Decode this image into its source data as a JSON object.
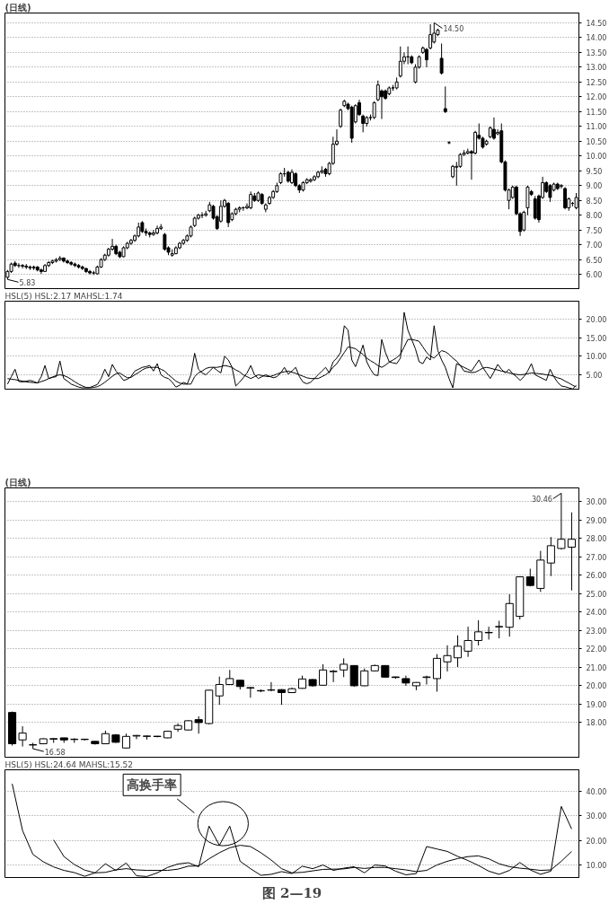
{
  "chart_data": [
    {
      "type": "candlestick",
      "title": "(日线)",
      "tick_labels": "y",
      "grid": "y",
      "categories": [
        null,
        null,
        null,
        null,
        null,
        null,
        null,
        null,
        null,
        null,
        null,
        null,
        null,
        null,
        null,
        null,
        null,
        null,
        null,
        null,
        null,
        null,
        null,
        null,
        null,
        null,
        null,
        null,
        null,
        null,
        null,
        null,
        null,
        null,
        null,
        null,
        null,
        null,
        null,
        null,
        null,
        null,
        null,
        null,
        null,
        null,
        null,
        null,
        null,
        null,
        null,
        null,
        null,
        null,
        null,
        null,
        null,
        null,
        null,
        null,
        null,
        null,
        null,
        null,
        null,
        null,
        null,
        null,
        null,
        null,
        null,
        null,
        null,
        null,
        null,
        null,
        null,
        null,
        null,
        null,
        null,
        null,
        null,
        null,
        null,
        null,
        null,
        null,
        null,
        null,
        null,
        null,
        null,
        null,
        null,
        null,
        null,
        null,
        null,
        null,
        null,
        null,
        null,
        null,
        null,
        null,
        null,
        null,
        null,
        null,
        null,
        null,
        null,
        null,
        null,
        null,
        null,
        null,
        null,
        null,
        null,
        null,
        null,
        null,
        null,
        null,
        null,
        null,
        null,
        null,
        null,
        null,
        null,
        null,
        null,
        null,
        null,
        null,
        null,
        null,
        null,
        null,
        null,
        null,
        null,
        null,
        null,
        null,
        null,
        null,
        null,
        null,
        null
      ],
      "ohlc": [
        [
          5.9,
          6.15,
          5.83,
          6.1
        ],
        [
          6.1,
          6.4,
          6.05,
          6.35
        ],
        [
          6.38,
          6.45,
          6.25,
          6.3
        ],
        [
          6.3,
          6.38,
          6.22,
          6.3
        ],
        [
          6.3,
          6.35,
          6.2,
          6.28
        ],
        [
          6.28,
          6.35,
          6.18,
          6.25
        ],
        [
          6.25,
          6.3,
          6.15,
          6.22
        ],
        [
          6.22,
          6.3,
          6.15,
          6.25
        ],
        [
          6.25,
          6.28,
          6.1,
          6.15
        ],
        [
          6.15,
          6.2,
          6.02,
          6.1
        ],
        [
          6.1,
          6.35,
          6.08,
          6.3
        ],
        [
          6.3,
          6.45,
          6.25,
          6.4
        ],
        [
          6.4,
          6.5,
          6.35,
          6.45
        ],
        [
          6.45,
          6.55,
          6.4,
          6.5
        ],
        [
          6.5,
          6.62,
          6.45,
          6.55
        ],
        [
          6.55,
          6.58,
          6.4,
          6.45
        ],
        [
          6.45,
          6.5,
          6.35,
          6.4
        ],
        [
          6.4,
          6.45,
          6.3,
          6.35
        ],
        [
          6.35,
          6.4,
          6.25,
          6.3
        ],
        [
          6.3,
          6.35,
          6.2,
          6.25
        ],
        [
          6.25,
          6.3,
          6.15,
          6.2
        ],
        [
          6.2,
          6.22,
          6.05,
          6.1
        ],
        [
          6.1,
          6.15,
          6.0,
          6.05
        ],
        [
          6.05,
          6.12,
          5.98,
          6.05
        ],
        [
          6.02,
          6.3,
          6.0,
          6.25
        ],
        [
          6.25,
          6.55,
          6.22,
          6.5
        ],
        [
          6.5,
          6.7,
          6.45,
          6.65
        ],
        [
          6.65,
          6.9,
          6.6,
          6.85
        ],
        [
          6.85,
          7.2,
          6.8,
          6.95
        ],
        [
          6.95,
          7.0,
          6.65,
          6.7
        ],
        [
          6.75,
          6.8,
          6.55,
          6.6
        ],
        [
          6.6,
          6.95,
          6.58,
          6.9
        ],
        [
          6.9,
          7.1,
          6.85,
          7.05
        ],
        [
          7.05,
          7.2,
          7.0,
          7.15
        ],
        [
          7.15,
          7.35,
          7.1,
          7.3
        ],
        [
          7.3,
          7.75,
          7.25,
          7.6
        ],
        [
          7.75,
          7.8,
          7.4,
          7.45
        ],
        [
          7.45,
          7.55,
          7.3,
          7.4
        ],
        [
          7.4,
          7.45,
          7.25,
          7.35
        ],
        [
          7.35,
          7.5,
          7.3,
          7.4
        ],
        [
          7.4,
          7.65,
          7.35,
          7.55
        ],
        [
          7.55,
          7.7,
          7.5,
          7.6
        ],
        [
          7.35,
          7.4,
          6.8,
          6.85
        ],
        [
          6.9,
          6.95,
          6.65,
          6.75
        ],
        [
          6.65,
          6.85,
          6.6,
          6.7
        ],
        [
          6.7,
          6.95,
          6.68,
          6.9
        ],
        [
          6.9,
          7.1,
          6.85,
          7.05
        ],
        [
          7.05,
          7.2,
          7.0,
          7.15
        ],
        [
          7.15,
          7.35,
          7.1,
          7.3
        ],
        [
          7.3,
          7.65,
          7.25,
          7.6
        ],
        [
          7.65,
          7.95,
          7.6,
          7.9
        ],
        [
          7.9,
          8.05,
          7.85,
          8.0
        ],
        [
          8.0,
          8.1,
          7.9,
          8.0
        ],
        [
          8.0,
          8.15,
          7.95,
          8.05
        ],
        [
          8.15,
          8.45,
          8.1,
          8.35
        ],
        [
          8.3,
          8.35,
          7.85,
          7.9
        ],
        [
          7.95,
          8.0,
          7.5,
          7.55
        ],
        [
          7.8,
          8.5,
          7.75,
          8.3
        ],
        [
          8.3,
          8.55,
          8.25,
          8.5
        ],
        [
          8.4,
          8.45,
          7.6,
          7.75
        ],
        [
          7.85,
          8.1,
          7.8,
          8.05
        ],
        [
          8.05,
          8.25,
          8.0,
          8.2
        ],
        [
          8.2,
          8.3,
          8.1,
          8.25
        ],
        [
          8.25,
          8.3,
          8.15,
          8.25
        ],
        [
          8.25,
          8.4,
          8.2,
          8.3
        ],
        [
          8.25,
          8.8,
          8.2,
          8.7
        ],
        [
          8.65,
          8.75,
          8.45,
          8.5
        ],
        [
          8.5,
          8.8,
          8.45,
          8.75
        ],
        [
          8.7,
          8.75,
          8.35,
          8.4
        ],
        [
          8.2,
          8.4,
          8.1,
          8.35
        ],
        [
          8.4,
          8.65,
          8.35,
          8.6
        ],
        [
          8.6,
          8.85,
          8.55,
          8.8
        ],
        [
          8.8,
          9.1,
          8.75,
          9.0
        ],
        [
          9.1,
          9.45,
          9.05,
          9.4
        ],
        [
          9.4,
          9.6,
          9.3,
          9.4
        ],
        [
          9.45,
          9.5,
          9.1,
          9.15
        ],
        [
          9.1,
          9.55,
          9.05,
          9.45
        ],
        [
          9.4,
          9.45,
          8.95,
          9.0
        ],
        [
          9.0,
          9.05,
          8.75,
          8.85
        ],
        [
          8.85,
          9.15,
          8.8,
          9.1
        ],
        [
          9.1,
          9.25,
          9.05,
          9.2
        ],
        [
          9.15,
          9.25,
          9.1,
          9.2
        ],
        [
          9.2,
          9.35,
          9.15,
          9.3
        ],
        [
          9.3,
          9.5,
          9.25,
          9.45
        ],
        [
          9.45,
          9.65,
          9.4,
          9.5
        ],
        [
          9.55,
          9.6,
          9.3,
          9.4
        ],
        [
          9.4,
          9.8,
          9.35,
          9.75
        ],
        [
          9.75,
          10.65,
          9.7,
          10.4
        ],
        [
          10.4,
          10.9,
          10.35,
          10.5
        ],
        [
          11.0,
          11.6,
          10.95,
          11.55
        ],
        [
          11.7,
          11.9,
          11.65,
          11.85
        ],
        [
          11.75,
          11.8,
          11.55,
          11.6
        ],
        [
          11.65,
          11.7,
          10.45,
          10.6
        ],
        [
          11.15,
          11.75,
          11.1,
          11.7
        ],
        [
          11.8,
          11.9,
          11.35,
          11.4
        ],
        [
          11.35,
          11.4,
          10.8,
          11.1
        ],
        [
          11.1,
          11.35,
          11.0,
          11.3
        ],
        [
          11.3,
          11.4,
          11.2,
          11.3
        ],
        [
          11.3,
          11.85,
          11.25,
          11.8
        ],
        [
          11.9,
          12.55,
          11.85,
          12.4
        ],
        [
          12.2,
          12.25,
          11.25,
          12.0
        ],
        [
          12.2,
          12.25,
          11.9,
          11.95
        ],
        [
          12.1,
          12.35,
          12.05,
          12.3
        ],
        [
          12.3,
          12.4,
          12.2,
          12.3
        ],
        [
          12.3,
          12.65,
          12.25,
          12.5
        ],
        [
          12.7,
          13.7,
          12.65,
          13.2
        ],
        [
          13.2,
          13.5,
          13.1,
          13.35
        ],
        [
          13.35,
          13.7,
          13.1,
          13.35
        ],
        [
          13.35,
          13.4,
          13.1,
          13.15
        ],
        [
          12.5,
          13.1,
          12.45,
          13.0
        ],
        [
          13.0,
          13.4,
          12.95,
          13.35
        ],
        [
          13.5,
          13.7,
          13.45,
          13.65
        ],
        [
          13.6,
          13.65,
          13.0,
          13.25
        ],
        [
          13.65,
          14.45,
          13.6,
          14.1
        ],
        [
          13.85,
          14.5,
          13.8,
          14.15
        ],
        [
          14.1,
          14.3,
          14.05,
          14.25
        ],
        [
          13.3,
          13.8,
          12.75,
          12.8
        ],
        [
          11.6,
          12.35,
          11.45,
          11.5
        ],
        [
          10.45,
          10.5,
          10.4,
          10.45
        ],
        [
          9.3,
          9.7,
          9.25,
          9.65
        ],
        [
          9.62,
          9.8,
          9.0,
          9.65
        ],
        [
          9.65,
          10.1,
          9.6,
          10.05
        ],
        [
          10.05,
          10.2,
          10.0,
          10.1
        ],
        [
          10.1,
          10.25,
          10.05,
          10.15
        ],
        [
          10.15,
          10.2,
          9.2,
          10.1
        ],
        [
          10.1,
          10.85,
          10.05,
          10.8
        ],
        [
          10.7,
          11.1,
          10.55,
          10.6
        ],
        [
          10.6,
          10.65,
          10.25,
          10.3
        ],
        [
          10.4,
          10.55,
          10.35,
          10.5
        ],
        [
          10.65,
          11.0,
          10.6,
          10.95
        ],
        [
          10.9,
          11.3,
          10.55,
          10.6
        ],
        [
          10.75,
          10.9,
          10.7,
          10.8
        ],
        [
          10.85,
          11.1,
          9.75,
          9.8
        ],
        [
          9.8,
          9.85,
          8.8,
          8.85
        ],
        [
          8.5,
          8.9,
          8.2,
          8.85
        ],
        [
          8.6,
          9.0,
          8.55,
          8.95
        ],
        [
          8.95,
          9.0,
          8.0,
          8.05
        ],
        [
          8.05,
          8.1,
          7.3,
          7.45
        ],
        [
          7.5,
          8.15,
          7.45,
          8.1
        ],
        [
          8.25,
          9.0,
          8.0,
          8.95
        ],
        [
          8.8,
          8.85,
          8.65,
          8.7
        ],
        [
          8.55,
          8.65,
          7.85,
          7.9
        ],
        [
          8.65,
          8.7,
          7.75,
          7.85
        ],
        [
          8.6,
          9.3,
          8.55,
          9.1
        ],
        [
          9.1,
          9.15,
          8.75,
          8.8
        ],
        [
          9.0,
          9.05,
          8.45,
          8.6
        ],
        [
          8.85,
          9.1,
          8.8,
          9.05
        ],
        [
          9.05,
          9.1,
          8.85,
          8.9
        ],
        [
          8.98,
          9.05,
          8.9,
          9.0
        ],
        [
          8.9,
          8.95,
          8.2,
          8.25
        ],
        [
          8.25,
          8.6,
          8.15,
          8.55
        ],
        [
          8.4,
          8.45,
          8.3,
          8.4
        ],
        [
          8.25,
          8.75,
          8.2,
          8.6
        ]
      ],
      "ylim": [
        5.49,
        14.83
      ],
      "yticks": [
        {
          "value": 6,
          "label": "6.00"
        },
        {
          "value": 6.5,
          "label": "6.50"
        },
        {
          "value": 7,
          "label": "7.00"
        },
        {
          "value": 7.5,
          "label": "7.50"
        },
        {
          "value": 8,
          "label": "8.00"
        },
        {
          "value": 8.5,
          "label": "8.50"
        },
        {
          "value": 9,
          "label": "9.00"
        },
        {
          "value": 9.5,
          "label": "9.50"
        },
        {
          "value": 10,
          "label": "10.00"
        },
        {
          "value": 10.5,
          "label": "10.50"
        },
        {
          "value": 11,
          "label": "11.00"
        },
        {
          "value": 11.5,
          "label": "11.50"
        },
        {
          "value": 12,
          "label": "12.00"
        },
        {
          "value": 12.5,
          "label": "12.50"
        },
        {
          "value": 13,
          "label": "13.00"
        },
        {
          "value": 13.5,
          "label": "13.50"
        },
        {
          "value": 14,
          "label": "14.00"
        },
        {
          "value": 14.5,
          "label": "14.50"
        }
      ],
      "annotations": [
        "14.50",
        "5.83"
      ]
    },
    {
      "type": "line",
      "title": "HSL(5) HSL:2.17 MAHSL:1.74",
      "tick_labels": "y",
      "grid": "y",
      "categories": [
        null,
        null,
        null,
        null,
        null,
        null,
        null,
        null,
        null,
        null,
        null,
        null,
        null,
        null,
        null,
        null,
        null,
        null,
        null,
        null,
        null,
        null,
        null,
        null,
        null,
        null,
        null,
        null,
        null,
        null,
        null,
        null,
        null,
        null,
        null,
        null,
        null,
        null,
        null,
        null,
        null,
        null,
        null,
        null,
        null,
        null,
        null,
        null,
        null,
        null,
        null,
        null,
        null,
        null,
        null,
        null,
        null,
        null,
        null,
        null,
        null,
        null,
        null,
        null,
        null,
        null,
        null,
        null,
        null,
        null,
        null,
        null,
        null,
        null,
        null,
        null,
        null,
        null,
        null,
        null,
        null,
        null,
        null,
        null,
        null,
        null,
        null,
        null,
        null,
        null,
        null,
        null,
        null,
        null,
        null,
        null,
        null,
        null,
        null,
        null,
        null,
        null,
        null,
        null,
        null,
        null,
        null,
        null,
        null,
        null,
        null,
        null,
        null,
        null,
        null,
        null,
        null,
        null,
        null,
        null,
        null,
        null,
        null,
        null,
        null,
        null,
        null,
        null,
        null,
        null,
        null,
        null,
        null,
        null,
        null,
        null,
        null,
        null,
        null,
        null,
        null,
        null,
        null,
        null,
        null,
        null,
        null,
        null,
        null,
        null,
        null,
        null,
        null
      ],
      "series": [
        {
          "color": "#000000",
          "values": [
            2.5,
            4.5,
            6.5,
            3.2,
            3.1,
            3.3,
            3.5,
            3.2,
            2.8,
            4.5,
            7.5,
            4.0,
            4.3,
            4.5,
            8.7,
            4.0,
            3.3,
            2.5,
            2.1,
            1.7,
            1.5,
            1.5,
            1.6,
            2.0,
            2.4,
            4.0,
            6.5,
            4.5,
            7.8,
            6.0,
            4.8,
            3.5,
            3.8,
            4.5,
            6.0,
            6.5,
            7.0,
            7.2,
            7.5,
            6.0,
            8.0,
            5.0,
            4.3,
            4.0,
            3.0,
            1.7,
            2.2,
            3.0,
            2.5,
            5.0,
            10.8,
            6.5,
            5.5,
            5.0,
            6.0,
            7.0,
            6.2,
            5.5,
            10.0,
            9.0,
            7.0,
            2.0,
            3.0,
            4.2,
            5.5,
            7.5,
            5.0,
            4.0,
            4.5,
            5.0,
            4.6,
            4.2,
            4.5,
            5.5,
            7.0,
            5.2,
            6.0,
            7.0,
            4.5,
            3.0,
            2.6,
            3.0,
            4.0,
            5.0,
            6.0,
            7.0,
            5.5,
            8.5,
            9.5,
            11.0,
            18.2,
            17.0,
            9.0,
            7.2,
            10.0,
            13.0,
            8.5,
            6.5,
            5.0,
            4.8,
            14.5,
            11.0,
            8.5,
            8.2,
            8.0,
            9.5,
            21.8,
            17.0,
            14.5,
            12.0,
            8.5,
            8.0,
            9.8,
            9.0,
            18.2,
            11.5,
            9.0,
            7.0,
            4.0,
            1.5,
            8.0,
            7.5,
            7.0,
            6.5,
            6.0,
            7.5,
            9.0,
            7.0,
            5.5,
            4.0,
            5.8,
            7.8,
            6.5,
            5.5,
            6.5,
            5.3,
            4.5,
            3.5,
            4.5,
            6.0,
            8.0,
            5.0,
            4.5,
            4.0,
            3.5,
            6.5,
            4.5,
            3.0,
            2.0,
            1.8,
            1.5,
            1.2,
            2.17
          ]
        },
        {
          "color": "#000000",
          "values": [
            4.0,
            3.8,
            3.7,
            3.5,
            3.3,
            3.1,
            3.0,
            2.9,
            2.8,
            3.2,
            3.5,
            4.0,
            4.4,
            4.8,
            5.0,
            4.8,
            4.4,
            3.8,
            3.1,
            2.5,
            2.0,
            1.6,
            1.5,
            1.6,
            1.8,
            2.3,
            3.0,
            3.8,
            4.6,
            5.3,
            5.5,
            4.8,
            4.2,
            4.3,
            5.0,
            5.6,
            6.3,
            6.8,
            7.0,
            7.0,
            7.0,
            6.5,
            6.0,
            5.0,
            4.2,
            3.3,
            2.8,
            2.5,
            2.5,
            2.5,
            4.5,
            5.5,
            6.0,
            6.7,
            7.0,
            7.0,
            7.0,
            7.2,
            7.5,
            7.3,
            7.0,
            6.3,
            5.8,
            5.0,
            4.5,
            4.0,
            4.5,
            5.0,
            4.8,
            4.6,
            4.5,
            4.8,
            5.2,
            5.6,
            5.8,
            6.0,
            5.7,
            5.4,
            5.0,
            4.6,
            4.2,
            4.0,
            4.0,
            4.0,
            4.5,
            5.0,
            5.8,
            7.0,
            8.0,
            9.5,
            11.0,
            12.5,
            12.3,
            12.0,
            11.2,
            10.5,
            9.5,
            8.8,
            8.2,
            7.5,
            7.0,
            7.6,
            8.4,
            9.0,
            9.6,
            10.5,
            12.5,
            14.5,
            14.5,
            14.3,
            14.0,
            12.5,
            11.0,
            10.0,
            9.5,
            10.5,
            11.5,
            11.2,
            10.5,
            9.5,
            8.7,
            7.5,
            6.0,
            5.8,
            5.6,
            5.7,
            6.2,
            6.8,
            7.0,
            6.8,
            6.5,
            6.3,
            6.0,
            5.8,
            5.5,
            5.3,
            5.1,
            5.0,
            5.1,
            5.3,
            5.5,
            5.4,
            5.3,
            5.2,
            5.0,
            4.9,
            4.6,
            4.2,
            3.9,
            3.3,
            2.8,
            2.2,
            1.74
          ]
        }
      ],
      "ylim": [
        0.9,
        24.8
      ],
      "yticks": [
        {
          "value": 5,
          "label": "5.00"
        },
        {
          "value": 10,
          "label": "10.00"
        },
        {
          "value": 15,
          "label": "15.00"
        },
        {
          "value": 20,
          "label": "20.00"
        }
      ]
    },
    {
      "type": "candlestick",
      "title": "(日线)",
      "tick_labels": "y",
      "grid": "y",
      "categories": [
        null,
        null,
        null,
        null,
        null,
        null,
        null,
        null,
        null,
        null,
        null,
        null,
        null,
        null,
        null,
        null,
        null,
        null,
        null,
        null,
        null,
        null,
        null,
        null,
        null,
        null,
        null,
        null,
        null,
        null,
        null,
        null,
        null,
        null,
        null,
        null,
        null,
        null,
        null,
        null,
        null,
        null,
        null,
        null,
        null,
        null,
        null,
        null,
        null,
        null,
        null,
        null,
        null,
        null,
        null
      ],
      "ohlc": [
        [
          18.55,
          18.6,
          16.75,
          16.85
        ],
        [
          17.06,
          17.8,
          16.7,
          17.43
        ],
        [
          16.78,
          16.9,
          16.58,
          16.8
        ],
        [
          16.85,
          17.15,
          16.83,
          17.12
        ],
        [
          17.1,
          17.15,
          16.9,
          17.13
        ],
        [
          17.17,
          17.18,
          16.9,
          17.06
        ],
        [
          17.08,
          17.15,
          16.9,
          17.1
        ],
        [
          17.08,
          17.12,
          17.03,
          17.1
        ],
        [
          16.98,
          17.0,
          16.8,
          16.85
        ],
        [
          16.85,
          17.56,
          16.83,
          17.4
        ],
        [
          17.33,
          17.38,
          16.9,
          16.93
        ],
        [
          16.62,
          17.4,
          16.6,
          17.25
        ],
        [
          17.27,
          17.33,
          17.1,
          17.3
        ],
        [
          17.25,
          17.3,
          17.08,
          17.27
        ],
        [
          17.24,
          17.28,
          17.2,
          17.26
        ],
        [
          17.17,
          17.55,
          17.15,
          17.53
        ],
        [
          17.64,
          17.95,
          17.5,
          17.84
        ],
        [
          17.6,
          18.12,
          17.58,
          18.1
        ],
        [
          18.16,
          18.34,
          17.4,
          18.0
        ],
        [
          17.95,
          19.78,
          17.9,
          19.76
        ],
        [
          19.45,
          20.5,
          18.97,
          20.07
        ],
        [
          20.07,
          20.86,
          20.05,
          20.39
        ],
        [
          20.3,
          20.33,
          19.8,
          19.96
        ],
        [
          19.9,
          19.93,
          19.35,
          19.88
        ],
        [
          19.72,
          19.8,
          19.65,
          19.74
        ],
        [
          19.76,
          20.2,
          19.7,
          19.78
        ],
        [
          19.79,
          19.82,
          18.97,
          19.63
        ],
        [
          19.63,
          19.9,
          19.6,
          19.84
        ],
        [
          19.86,
          20.55,
          19.84,
          20.37
        ],
        [
          20.34,
          20.37,
          19.95,
          20.0
        ],
        [
          20.03,
          21.17,
          20.0,
          20.86
        ],
        [
          20.77,
          20.86,
          20.2,
          20.79
        ],
        [
          20.86,
          21.49,
          20.47,
          21.17
        ],
        [
          21.1,
          21.12,
          19.95,
          20.0
        ],
        [
          20.0,
          20.94,
          19.98,
          20.81
        ],
        [
          20.81,
          21.15,
          20.78,
          21.1
        ],
        [
          21.1,
          21.12,
          20.45,
          20.47
        ],
        [
          20.48,
          20.5,
          20.38,
          20.45
        ],
        [
          20.39,
          20.55,
          20.0,
          20.15
        ],
        [
          20.0,
          20.2,
          19.76,
          20.18
        ],
        [
          20.45,
          20.55,
          20.07,
          20.48
        ],
        [
          20.39,
          21.72,
          19.68,
          21.49
        ],
        [
          21.3,
          22.2,
          20.78,
          21.64
        ],
        [
          21.52,
          22.74,
          21.02,
          22.15
        ],
        [
          21.88,
          23.21,
          21.57,
          22.46
        ],
        [
          22.46,
          23.56,
          22.19,
          22.93
        ],
        [
          22.88,
          23.21,
          22.51,
          22.9
        ],
        [
          23.2,
          23.53,
          22.58,
          23.22
        ],
        [
          23.18,
          24.97,
          22.67,
          24.47
        ],
        [
          23.77,
          25.95,
          23.6,
          25.92
        ],
        [
          25.92,
          26.36,
          25.4,
          25.45
        ],
        [
          25.29,
          27.33,
          25.1,
          26.83
        ],
        [
          26.67,
          28.08,
          25.96,
          27.61
        ],
        [
          27.46,
          30.46,
          27.4,
          27.96
        ],
        [
          27.53,
          29.42,
          25.18,
          27.96
        ]
      ],
      "ylim": [
        16.07,
        30.75
      ],
      "yticks": [
        {
          "value": 18,
          "label": "18.00"
        },
        {
          "value": 19,
          "label": "19.00"
        },
        {
          "value": 20,
          "label": "20.00"
        },
        {
          "value": 21,
          "label": "21.00"
        },
        {
          "value": 22,
          "label": "22.00"
        },
        {
          "value": 23,
          "label": "23.00"
        },
        {
          "value": 24,
          "label": "24.00"
        },
        {
          "value": 25,
          "label": "25.00"
        },
        {
          "value": 26,
          "label": "26.00"
        },
        {
          "value": 27,
          "label": "27.00"
        },
        {
          "value": 28,
          "label": "28.00"
        },
        {
          "value": 29,
          "label": "29.00"
        },
        {
          "value": 30,
          "label": "30.00"
        }
      ],
      "annotations": [
        "30.46",
        "16.58"
      ]
    },
    {
      "type": "line",
      "title": "HSL(5) HSL:24.64 MAHSL:15.52",
      "tick_labels": "y",
      "grid": "y",
      "categories": [
        null,
        null,
        null,
        null,
        null,
        null,
        null,
        null,
        null,
        null,
        null,
        null,
        null,
        null,
        null,
        null,
        null,
        null,
        null,
        null,
        null,
        null,
        null,
        null,
        null,
        null,
        null,
        null,
        null,
        null,
        null,
        null,
        null,
        null,
        null,
        null,
        null,
        null,
        null,
        null,
        null,
        null,
        null,
        null,
        null,
        null,
        null,
        null,
        null,
        null,
        null,
        null,
        null,
        null,
        null
      ],
      "series": [
        {
          "color": "#000000",
          "values": [
            43.0,
            24.0,
            14.3,
            11.3,
            9.2,
            7.8,
            6.9,
            5.4,
            6.8,
            10.5,
            7.8,
            10.8,
            5.6,
            5.3,
            6.8,
            9.0,
            10.4,
            10.9,
            9.3,
            25.8,
            18.0,
            25.8,
            11.5,
            8.5,
            5.8,
            6.2,
            7.3,
            6.5,
            9.5,
            8.5,
            10.0,
            7.8,
            8.7,
            9.3,
            6.8,
            10.0,
            9.6,
            7.5,
            6.0,
            6.5,
            17.5,
            16.5,
            15.5,
            13.5,
            11.8,
            9.8,
            7.5,
            6.2,
            7.8,
            11.0,
            8.0,
            6.2,
            7.5,
            33.8,
            24.64
          ]
        },
        {
          "color": "#000000",
          "values": [
            null,
            null,
            null,
            null,
            20.2,
            13.4,
            10.2,
            7.9,
            6.8,
            7.0,
            8.0,
            8.5,
            8.0,
            7.8,
            7.8,
            7.8,
            8.3,
            9.5,
            9.6,
            12.5,
            15.0,
            17.0,
            18.0,
            17.5,
            15.0,
            12.0,
            8.5,
            6.8,
            7.0,
            7.6,
            8.2,
            8.3,
            8.4,
            9.0,
            8.6,
            9.0,
            9.0,
            8.5,
            8.0,
            7.3,
            7.8,
            10.0,
            11.5,
            12.6,
            13.4,
            13.7,
            12.5,
            10.5,
            9.3,
            8.7,
            8.3,
            7.8,
            8.0,
            11.5,
            15.52
          ]
        }
      ],
      "ylim": [
        4.9,
        48.7
      ],
      "yticks": [
        {
          "value": 10,
          "label": "10.00"
        },
        {
          "value": 20,
          "label": "20.00"
        },
        {
          "value": 30,
          "label": "30.00"
        },
        {
          "value": 40,
          "label": "40.00"
        }
      ],
      "annotations": [
        "高换手率",
        "图 2—19"
      ]
    }
  ]
}
